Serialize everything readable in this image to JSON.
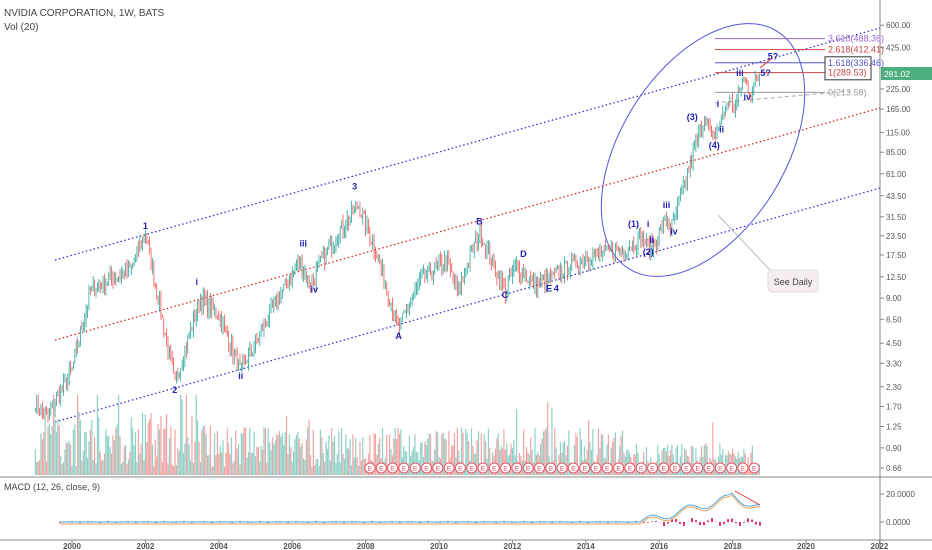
{
  "header": {
    "title": "NVIDIA CORPORATION, 1W, BATS",
    "volume_label": "Vol (20)",
    "macd_label": "MACD (12, 26, close, 9)"
  },
  "colors": {
    "up": "#26a69a",
    "down": "#ef5350",
    "wave": "#1e1eb4",
    "channel": "#3333cc",
    "mid": "#dd2222",
    "ellipse": "#5555dd",
    "last": "#4caf7d"
  },
  "chart_data": {
    "type": "candlestick",
    "scale": "log",
    "ylim": [
      0.6,
      650
    ],
    "xlim": [
      1998.6,
      2022.6
    ],
    "price_ticks": [
      "600.00",
      "425.00",
      "225.00",
      "165.00",
      "115.00",
      "85.00",
      "61.00",
      "43.50",
      "31.50",
      "23.50",
      "17.50",
      "12.50",
      "9.00",
      "6.50",
      "4.50",
      "3.30",
      "2.30",
      "1.70",
      "1.25",
      "0.90",
      "0.66"
    ],
    "last_price": "281.02",
    "x_ticks": [
      "2000",
      "2002",
      "2004",
      "2006",
      "2008",
      "2010",
      "2012",
      "2014",
      "2016",
      "2018",
      "2020",
      "2022"
    ],
    "macd_ticks": [
      "20.0000",
      "0.0000"
    ],
    "price_keypoints": [
      [
        1999.0,
        1.8
      ],
      [
        1999.3,
        1.4
      ],
      [
        2000.0,
        3
      ],
      [
        2000.5,
        10
      ],
      [
        2001.0,
        12
      ],
      [
        2001.6,
        14
      ],
      [
        2002.0,
        25
      ],
      [
        2002.8,
        2.4
      ],
      [
        2003.5,
        9
      ],
      [
        2004.0,
        7
      ],
      [
        2004.6,
        2.9
      ],
      [
        2005.5,
        8
      ],
      [
        2006.2,
        16
      ],
      [
        2006.5,
        11
      ],
      [
        2007.0,
        20
      ],
      [
        2007.8,
        38
      ],
      [
        2008.3,
        18
      ],
      [
        2008.9,
        5.6
      ],
      [
        2009.5,
        12
      ],
      [
        2010.2,
        16
      ],
      [
        2010.5,
        10
      ],
      [
        2011.1,
        25
      ],
      [
        2011.8,
        10
      ],
      [
        2012.1,
        15
      ],
      [
        2012.6,
        11
      ],
      [
        2013.0,
        12
      ],
      [
        2014.0,
        17
      ],
      [
        2015.0,
        19
      ],
      [
        2015.5,
        23
      ],
      [
        2015.75,
        19
      ],
      [
        2016.2,
        30
      ],
      [
        2016.35,
        27
      ],
      [
        2017.0,
        95
      ],
      [
        2017.25,
        150
      ],
      [
        2017.45,
        100
      ],
      [
        2017.9,
        190
      ],
      [
        2018.05,
        170
      ],
      [
        2018.3,
        265
      ],
      [
        2018.5,
        215
      ],
      [
        2018.75,
        281
      ]
    ],
    "wave_labels": [
      {
        "text": "1",
        "x": 2002.0,
        "p": 26
      },
      {
        "text": "2",
        "x": 2002.8,
        "p": 2.1
      },
      {
        "text": "i",
        "x": 2003.4,
        "p": 11
      },
      {
        "text": "ii",
        "x": 2004.6,
        "p": 2.6
      },
      {
        "text": "iii",
        "x": 2006.3,
        "p": 20
      },
      {
        "text": "iv",
        "x": 2006.6,
        "p": 9.8
      },
      {
        "text": "3",
        "x": 2007.7,
        "p": 48
      },
      {
        "text": "A",
        "x": 2008.9,
        "p": 4.8
      },
      {
        "text": "B",
        "x": 2011.1,
        "p": 28
      },
      {
        "text": "C",
        "x": 2011.8,
        "p": 9
      },
      {
        "text": "D",
        "x": 2012.3,
        "p": 17
      },
      {
        "text": "E",
        "x": 2013.0,
        "p": 10
      },
      {
        "text": "4",
        "x": 2013.2,
        "p": 10
      },
      {
        "text": "(1)",
        "x": 2015.3,
        "p": 27
      },
      {
        "text": "i",
        "x": 2015.7,
        "p": 27
      },
      {
        "text": "ii",
        "x": 2015.8,
        "p": 21
      },
      {
        "text": "(2)",
        "x": 2015.7,
        "p": 17.5
      },
      {
        "text": "iii",
        "x": 2016.2,
        "p": 36
      },
      {
        "text": "iv",
        "x": 2016.4,
        "p": 24
      },
      {
        "text": "(3)",
        "x": 2016.9,
        "p": 140
      },
      {
        "text": "(4)",
        "x": 2017.5,
        "p": 90
      },
      {
        "text": "i",
        "x": 2017.6,
        "p": 170
      },
      {
        "text": "ii",
        "x": 2017.7,
        "p": 115
      },
      {
        "text": "iii",
        "x": 2018.2,
        "p": 275
      },
      {
        "text": "iv",
        "x": 2018.4,
        "p": 190
      },
      {
        "text": "5?",
        "x": 2018.9,
        "p": 275
      },
      {
        "text": "5?",
        "x": 2019.1,
        "p": 355
      }
    ],
    "fib_levels": [
      {
        "label": "3.618(488.36)",
        "value": 488.36,
        "color": "#9966cc"
      },
      {
        "label": "2.618(412.41)",
        "value": 412.41,
        "color": "#cc4444"
      },
      {
        "label": "1.618(336.46)",
        "value": 336.46,
        "color": "#5555cc"
      },
      {
        "label": "1(289.53)",
        "value": 289.53,
        "color": "#cc4444"
      },
      {
        "label": "0(213.58)",
        "value": 213.58,
        "color": "#999999"
      }
    ],
    "annotation": "See Daily",
    "earnings_marker": "E"
  }
}
